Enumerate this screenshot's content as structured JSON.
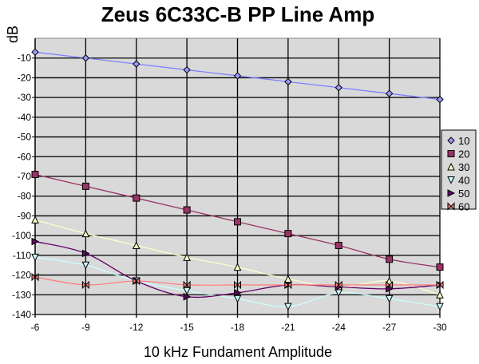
{
  "chart_data": {
    "type": "line",
    "title": "Zeus 6C33C-B PP Line Amp",
    "xlabel": "10 kHz Fundament Amplitude",
    "ylabel": "dB",
    "x": [
      -6,
      -9,
      -12,
      -15,
      -18,
      -21,
      -24,
      -27,
      -30
    ],
    "xticks": [
      "-6",
      "-9",
      "-12",
      "-15",
      "-18",
      "-21",
      "-24",
      "-27",
      "-30"
    ],
    "ylim": [
      -140,
      0
    ],
    "yticks": [
      -10,
      -20,
      -30,
      -40,
      -50,
      -60,
      -70,
      -80,
      -90,
      -100,
      -110,
      -120,
      -130,
      -140
    ],
    "grid": true,
    "legend_position": "right",
    "series": [
      {
        "name": "10",
        "marker": "diamond",
        "color": "#8080ff",
        "fill": "#9999ff",
        "values": [
          -7,
          -10,
          -13,
          -16,
          -19,
          -22,
          -25,
          -28,
          -31
        ]
      },
      {
        "name": "20",
        "marker": "square",
        "color": "#993366",
        "fill": "#993366",
        "values": [
          -69,
          -75,
          -81,
          -87,
          -93,
          -99,
          -105,
          -112,
          -116
        ]
      },
      {
        "name": "30",
        "marker": "triangle-up",
        "color": "#ffffcc",
        "fill": "#ffffcc",
        "values": [
          -92,
          -99,
          -105,
          -111,
          -116,
          -122,
          -126,
          -123,
          -130
        ]
      },
      {
        "name": "40",
        "marker": "triangle-down",
        "color": "#ccffff",
        "fill": "#ccffff",
        "values": [
          -111,
          -115,
          -123,
          -128,
          -132,
          -136,
          -129,
          -132,
          -136
        ]
      },
      {
        "name": "50",
        "marker": "triangle-right",
        "color": "#660066",
        "fill": "#660066",
        "values": [
          -103,
          -109,
          -123,
          -131,
          -129,
          -125,
          -126,
          -127,
          -125
        ]
      },
      {
        "name": "60",
        "marker": "bowtie",
        "color": "#ff8080",
        "fill": "#ff8080",
        "values": [
          -121,
          -125,
          -123,
          -125,
          -125,
          -125,
          -125,
          -125,
          -125
        ]
      }
    ]
  }
}
